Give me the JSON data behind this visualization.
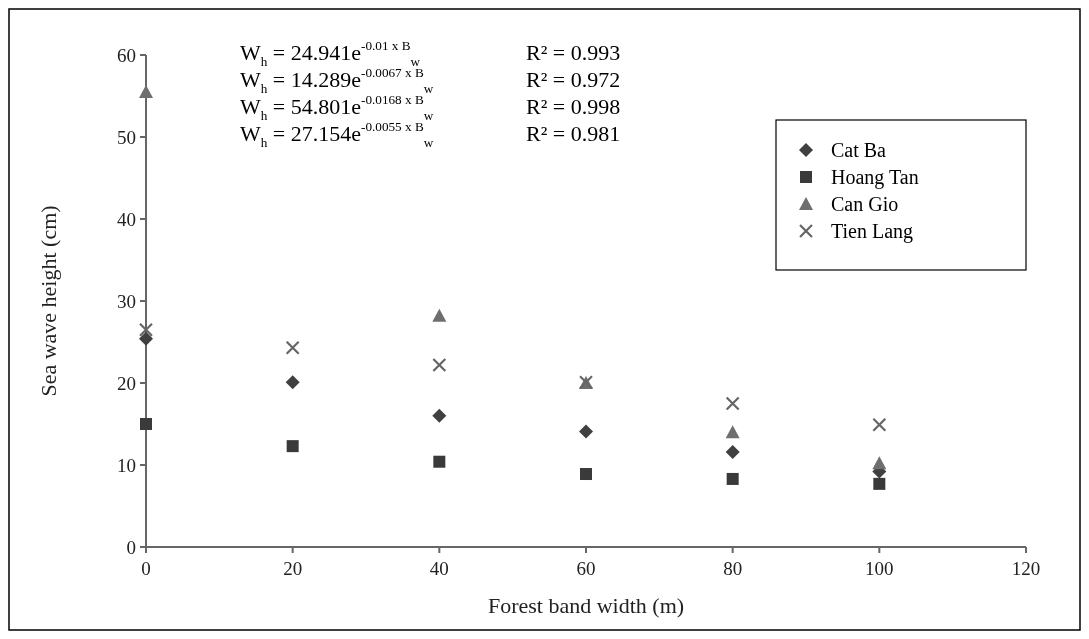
{
  "chart_data": {
    "type": "scatter",
    "xlabel": "Forest band width (m)",
    "ylabel": "Sea wave height (cm)",
    "x": [
      0,
      20,
      40,
      60,
      80,
      100
    ],
    "xlim": [
      0,
      120
    ],
    "xticks": [
      0,
      20,
      40,
      60,
      80,
      100,
      120
    ],
    "ylim": [
      0,
      60
    ],
    "yticks": [
      0,
      10,
      20,
      30,
      40,
      50,
      60
    ],
    "grid": false,
    "legend": "top right",
    "series": [
      {
        "name": "Cat Ba",
        "color": "#404040",
        "marker": "diamond",
        "values": [
          25.4,
          20.1,
          16.0,
          14.1,
          11.6,
          9.2
        ]
      },
      {
        "name": "Hoang Tan",
        "color": "#3a3a3a",
        "marker": "square",
        "values": [
          15.0,
          12.3,
          10.4,
          8.9,
          8.3,
          7.7
        ]
      },
      {
        "name": "Can Gio",
        "color": "#6e6e6e",
        "marker": "triangle",
        "values": [
          55.5,
          null,
          28.2,
          20.0,
          14.0,
          10.2
        ]
      },
      {
        "name": "Tien Lang",
        "color": "#666666",
        "marker": "cross",
        "values": [
          26.5,
          24.3,
          22.2,
          20.1,
          17.5,
          14.9
        ]
      }
    ],
    "annotations": [
      "W$_{h}$ = 24.941e$^{-0.01 x B}$$_{w}$",
      "R² = 0.993",
      "W$_{h}$ = 14.289e$^{-0.0067 x B}$$_{w}$",
      "R² = 0.972",
      "W$_{h}$ = 54.801e$^{-0.0168 x B}$$_{w}$",
      "R² = 0.998",
      "W$_{h}$ = 27.154e$^{-0.0055 x B}$$_{w}$",
      "R² = 0.981"
    ]
  }
}
